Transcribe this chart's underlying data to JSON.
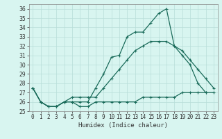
{
  "title": "",
  "xlabel": "Humidex (Indice chaleur)",
  "x_values": [
    0,
    1,
    2,
    3,
    4,
    5,
    6,
    7,
    8,
    9,
    10,
    11,
    12,
    13,
    14,
    15,
    16,
    17,
    18,
    19,
    20,
    21,
    22,
    23
  ],
  "y_main": [
    27.5,
    26.0,
    25.5,
    25.5,
    26.0,
    26.0,
    26.0,
    26.0,
    27.5,
    29.0,
    30.8,
    31.0,
    33.0,
    33.5,
    33.5,
    34.5,
    35.5,
    36.0,
    32.0,
    31.0,
    30.0,
    28.0,
    27.0,
    null
  ],
  "y_min": [
    27.5,
    26.0,
    25.5,
    25.5,
    26.0,
    26.0,
    25.5,
    25.5,
    26.0,
    26.0,
    26.0,
    26.0,
    26.0,
    26.0,
    26.5,
    26.5,
    26.5,
    26.5,
    26.5,
    27.0,
    27.0,
    27.0,
    27.0,
    27.0
  ],
  "y_max": [
    27.5,
    26.0,
    25.5,
    25.5,
    26.0,
    26.5,
    26.5,
    26.5,
    26.5,
    27.5,
    28.5,
    29.5,
    30.5,
    31.5,
    32.0,
    32.5,
    32.5,
    32.5,
    32.0,
    31.5,
    30.5,
    29.5,
    28.5,
    27.5
  ],
  "line_color": "#1a6b5a",
  "background_color": "#d8f5f0",
  "grid_color": "#b8ddd8",
  "ylim": [
    25,
    36.5
  ],
  "xlim": [
    -0.5,
    23.5
  ],
  "yticks": [
    25,
    26,
    27,
    28,
    29,
    30,
    31,
    32,
    33,
    34,
    35,
    36
  ],
  "xticks": [
    0,
    1,
    2,
    3,
    4,
    5,
    6,
    7,
    8,
    9,
    10,
    11,
    12,
    13,
    14,
    15,
    16,
    17,
    18,
    19,
    20,
    21,
    22,
    23
  ],
  "tick_fontsize": 5.5,
  "xlabel_fontsize": 6.5
}
